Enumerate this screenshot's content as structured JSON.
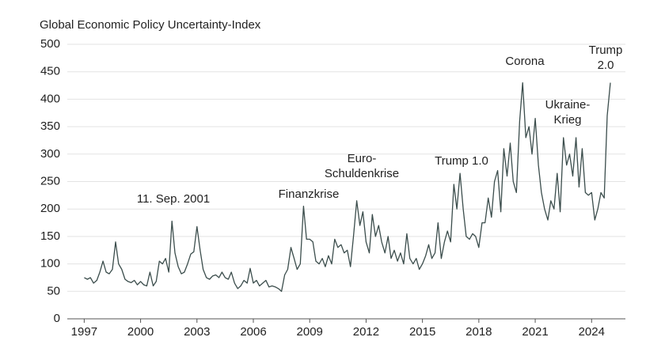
{
  "chart_data": {
    "type": "line",
    "title": "Global Economic Policy Uncertainty-Index",
    "color": "#3b4d4c",
    "xlim": [
      1996.1,
      2025.8
    ],
    "xticks": [
      1997,
      2000,
      2003,
      2006,
      2009,
      2012,
      2015,
      2018,
      2021,
      2024
    ],
    "ylim": [
      0,
      500
    ],
    "yticks": [
      0,
      50,
      100,
      150,
      200,
      250,
      300,
      350,
      400,
      450,
      500
    ],
    "grid": true,
    "annotations": [
      "11. Sep. 2001",
      "Finanzkrise",
      [
        "Euro-",
        "Schuldenkrise"
      ],
      "Trump 1.0",
      "Corona",
      [
        "Ukraine-",
        "Krieg"
      ],
      [
        "Trump",
        "2.0"
      ]
    ],
    "x": [
      1997,
      1997.17,
      1997.33,
      1997.5,
      1997.67,
      1997.83,
      1998,
      1998.17,
      1998.33,
      1998.5,
      1998.67,
      1998.83,
      1999,
      1999.17,
      1999.33,
      1999.5,
      1999.67,
      1999.83,
      2000,
      2000.17,
      2000.33,
      2000.5,
      2000.67,
      2000.83,
      2001,
      2001.17,
      2001.33,
      2001.5,
      2001.67,
      2001.83,
      2002,
      2002.17,
      2002.33,
      2002.5,
      2002.67,
      2002.83,
      2003,
      2003.17,
      2003.33,
      2003.5,
      2003.67,
      2003.83,
      2004,
      2004.17,
      2004.33,
      2004.5,
      2004.67,
      2004.83,
      2005,
      2005.17,
      2005.33,
      2005.5,
      2005.67,
      2005.83,
      2006,
      2006.17,
      2006.33,
      2006.5,
      2006.67,
      2006.83,
      2007,
      2007.17,
      2007.33,
      2007.5,
      2007.67,
      2007.83,
      2008,
      2008.17,
      2008.33,
      2008.5,
      2008.67,
      2008.83,
      2009,
      2009.17,
      2009.33,
      2009.5,
      2009.67,
      2009.83,
      2010,
      2010.17,
      2010.33,
      2010.5,
      2010.67,
      2010.83,
      2011,
      2011.17,
      2011.33,
      2011.5,
      2011.67,
      2011.83,
      2012,
      2012.17,
      2012.33,
      2012.5,
      2012.67,
      2012.83,
      2013,
      2013.17,
      2013.33,
      2013.5,
      2013.67,
      2013.83,
      2014,
      2014.17,
      2014.33,
      2014.5,
      2014.67,
      2014.83,
      2015,
      2015.17,
      2015.33,
      2015.5,
      2015.67,
      2015.83,
      2016,
      2016.17,
      2016.33,
      2016.5,
      2016.67,
      2016.83,
      2017,
      2017.17,
      2017.33,
      2017.5,
      2017.67,
      2017.83,
      2018,
      2018.17,
      2018.33,
      2018.5,
      2018.67,
      2018.83,
      2019,
      2019.17,
      2019.33,
      2019.5,
      2019.67,
      2019.83,
      2020,
      2020.17,
      2020.33,
      2020.5,
      2020.67,
      2020.83,
      2021,
      2021.17,
      2021.33,
      2021.5,
      2021.67,
      2021.83,
      2022,
      2022.17,
      2022.33,
      2022.5,
      2022.67,
      2022.83,
      2023,
      2023.17,
      2023.33,
      2023.5,
      2023.67,
      2023.83,
      2024,
      2024.17,
      2024.33,
      2024.5,
      2024.67,
      2024.83,
      2025
    ],
    "values": [
      75,
      72,
      75,
      65,
      70,
      85,
      105,
      85,
      82,
      90,
      140,
      100,
      90,
      72,
      68,
      66,
      70,
      62,
      68,
      62,
      60,
      85,
      60,
      68,
      105,
      100,
      110,
      85,
      178,
      120,
      95,
      82,
      85,
      100,
      118,
      122,
      168,
      125,
      90,
      75,
      72,
      78,
      80,
      75,
      85,
      75,
      72,
      85,
      65,
      55,
      60,
      70,
      65,
      92,
      65,
      70,
      60,
      65,
      70,
      58,
      60,
      58,
      55,
      50,
      80,
      90,
      130,
      110,
      90,
      100,
      205,
      145,
      145,
      140,
      105,
      100,
      110,
      95,
      115,
      100,
      145,
      130,
      135,
      120,
      125,
      95,
      150,
      215,
      170,
      195,
      140,
      120,
      190,
      150,
      170,
      140,
      120,
      150,
      110,
      125,
      105,
      120,
      100,
      155,
      110,
      100,
      110,
      90,
      100,
      115,
      135,
      110,
      120,
      175,
      110,
      140,
      160,
      140,
      245,
      200,
      265,
      200,
      150,
      145,
      155,
      150,
      130,
      175,
      175,
      220,
      185,
      250,
      270,
      195,
      310,
      260,
      320,
      250,
      230,
      360,
      430,
      330,
      350,
      300,
      365,
      280,
      230,
      200,
      180,
      215,
      200,
      265,
      195,
      330,
      280,
      300,
      260,
      330,
      240,
      310,
      230,
      225,
      230,
      180,
      200,
      230,
      220,
      370,
      430
    ]
  }
}
